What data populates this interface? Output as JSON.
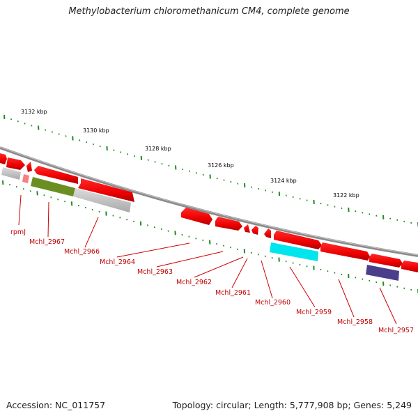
{
  "title": "Methylobacterium chloromethanicum CM4, complete genome",
  "footer": {
    "accession": "Accession: NC_011757",
    "topology": "Topology: circular; Length: 5,777,908 bp; Genes: 5,249"
  },
  "scale_labels": [
    "3132 kbp",
    "3130 kbp",
    "3128 kbp",
    "3126 kbp",
    "3124 kbp",
    "3122 kbp"
  ],
  "gene_labels": [
    "rpmJ",
    "Mchl_2967",
    "Mchl_2966",
    "Mchl_2964",
    "Mchl_2963",
    "Mchl_2962",
    "Mchl_2961",
    "Mchl_2960",
    "Mchl_2959",
    "Mchl_2958",
    "Mchl_2957"
  ],
  "colors": {
    "cds": "#ee0000",
    "rna": "#f58080",
    "backbone": "#888888",
    "tick": "#228b22",
    "label": "#c00000",
    "gray_feature": "#c8c8c8",
    "olive_feature": "#6b8e23",
    "cyan_feature": "#00e5ee",
    "purple_feature": "#4b3f8c"
  }
}
